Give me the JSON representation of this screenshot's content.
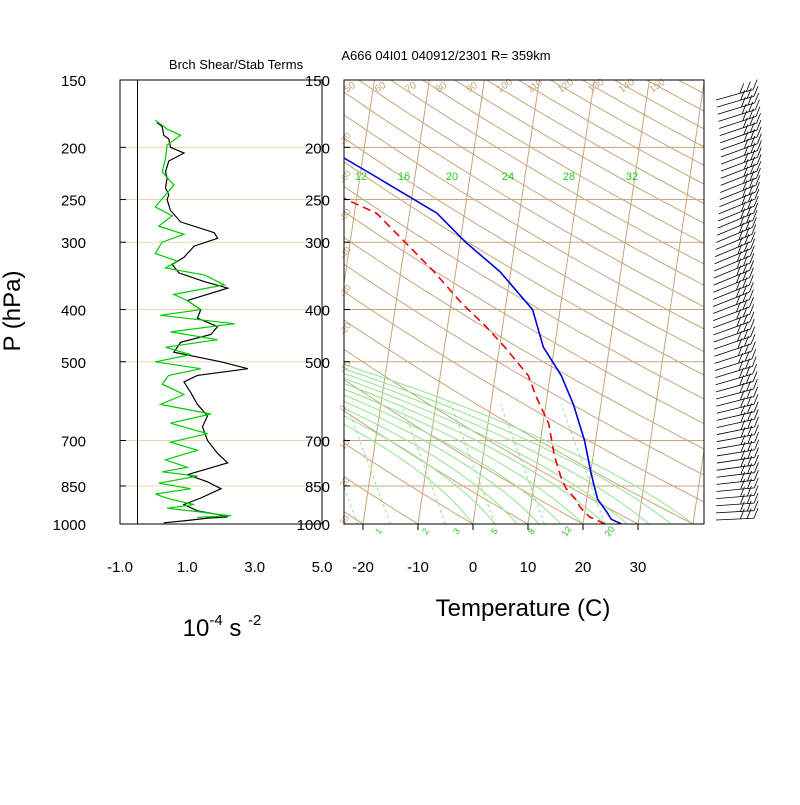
{
  "chart_data": [
    {
      "type": "line",
      "title": "Brch Shear/Stab Terms",
      "xlabel": "10-4 s -2",
      "xlabel_main": "10",
      "xlabel_exp1": "-4",
      "xlabel_mid": " s ",
      "xlabel_exp2": "-2",
      "ylabel": "P (hPa)",
      "xlim": [
        -1.0,
        5.0
      ],
      "x_ticks": [
        "-1.0",
        "1.0",
        "3.0",
        "5.0"
      ],
      "x_tick_values": [
        -1,
        1,
        3,
        5
      ],
      "y_scale": "log",
      "ylim": [
        1000,
        150
      ],
      "y_ticks": [
        150,
        200,
        250,
        300,
        400,
        500,
        700,
        850,
        1000
      ],
      "reference_line_x": 0,
      "grid": "horizontal pressure lines",
      "series": [
        {
          "color": "#000000",
          "points": [
            [
              0.1,
              180
            ],
            [
              0.25,
              183
            ],
            [
              0.3,
              190
            ],
            [
              0.45,
              193
            ],
            [
              0.5,
              200
            ],
            [
              0.9,
              205
            ],
            [
              0.45,
              212
            ],
            [
              0.35,
              222
            ],
            [
              0.4,
              228
            ],
            [
              0.35,
              238
            ],
            [
              0.45,
              245
            ],
            [
              0.4,
              250
            ],
            [
              0.5,
              262
            ],
            [
              0.8,
              275
            ],
            [
              1.8,
              288
            ],
            [
              1.9,
              295
            ],
            [
              1.2,
              305
            ],
            [
              0.9,
              320
            ],
            [
              0.55,
              330
            ],
            [
              0.75,
              342
            ],
            [
              1.5,
              355
            ],
            [
              2.2,
              365
            ],
            [
              1.0,
              385
            ],
            [
              1.4,
              400
            ],
            [
              1.3,
              415
            ],
            [
              1.9,
              430
            ],
            [
              1.7,
              445
            ],
            [
              0.8,
              460
            ],
            [
              0.6,
              480
            ],
            [
              2.0,
              500
            ],
            [
              2.8,
              515
            ],
            [
              1.3,
              530
            ],
            [
              0.9,
              545
            ],
            [
              1.1,
              570
            ],
            [
              1.3,
              600
            ],
            [
              1.6,
              630
            ],
            [
              1.45,
              660
            ],
            [
              1.6,
              700
            ],
            [
              1.9,
              740
            ],
            [
              2.2,
              770
            ],
            [
              1.6,
              790
            ],
            [
              1.0,
              810
            ],
            [
              1.6,
              835
            ],
            [
              2.0,
              860
            ],
            [
              1.4,
              895
            ],
            [
              0.9,
              920
            ],
            [
              1.3,
              945
            ],
            [
              1.9,
              960
            ],
            [
              2.2,
              970
            ],
            [
              1.6,
              975
            ],
            [
              1.0,
              985
            ],
            [
              0.3,
              995
            ]
          ]
        },
        {
          "color": "#00cc00",
          "points": [
            [
              0.05,
              178
            ],
            [
              0.4,
              185
            ],
            [
              0.8,
              190
            ],
            [
              0.4,
              198
            ],
            [
              0.35,
              210
            ],
            [
              0.25,
              222
            ],
            [
              0.6,
              235
            ],
            [
              0.35,
              245
            ],
            [
              0.05,
              258
            ],
            [
              0.55,
              268
            ],
            [
              0.15,
              280
            ],
            [
              0.9,
              290
            ],
            [
              0.25,
              300
            ],
            [
              0.05,
              315
            ],
            [
              0.7,
              325
            ],
            [
              0.35,
              335
            ],
            [
              1.5,
              345
            ],
            [
              2.1,
              360
            ],
            [
              0.6,
              375
            ],
            [
              1.0,
              385
            ],
            [
              1.4,
              400
            ],
            [
              0.2,
              410
            ],
            [
              2.4,
              425
            ],
            [
              0.5,
              440
            ],
            [
              1.9,
              455
            ],
            [
              0.35,
              470
            ],
            [
              1.1,
              485
            ],
            [
              0.05,
              500
            ],
            [
              1.4,
              515
            ],
            [
              0.45,
              530
            ],
            [
              0.25,
              550
            ],
            [
              0.9,
              575
            ],
            [
              0.2,
              600
            ],
            [
              1.7,
              625
            ],
            [
              0.5,
              650
            ],
            [
              1.6,
              680
            ],
            [
              0.5,
              705
            ],
            [
              1.3,
              730
            ],
            [
              0.35,
              760
            ],
            [
              1.0,
              785
            ],
            [
              0.25,
              800
            ],
            [
              1.3,
              815
            ],
            [
              0.15,
              840
            ],
            [
              1.1,
              860
            ],
            [
              0.05,
              880
            ],
            [
              0.5,
              900
            ],
            [
              1.2,
              920
            ],
            [
              0.4,
              935
            ],
            [
              1.4,
              950
            ],
            [
              1.9,
              960
            ],
            [
              2.3,
              965
            ],
            [
              1.3,
              972
            ]
          ]
        }
      ]
    },
    {
      "type": "line",
      "subtype": "skew-T log-P sounding",
      "title": "A666 04I01 040912/2301 R= 359km",
      "xlabel": "Temperature (C)",
      "xlim": [
        -25,
        40
      ],
      "x_ticks": [
        "-20",
        "-10",
        "0",
        "10",
        "20",
        "30"
      ],
      "x_tick_values": [
        -20,
        -10,
        0,
        10,
        20,
        30
      ],
      "y_scale": "log",
      "ylim": [
        1000,
        150
      ],
      "y_ticks": [
        150,
        200,
        250,
        300,
        400,
        500,
        700,
        850,
        1000
      ],
      "isotherm_spacing": 10,
      "dry_adiabat_labels": [
        "50",
        "60",
        "70",
        "80",
        "90",
        "100",
        "110",
        "120",
        "130",
        "140",
        "150"
      ],
      "saturation_adiabat_labels": [
        "12",
        "16",
        "20",
        "24",
        "28",
        "32"
      ],
      "mixing_ratio_labels": [
        "1",
        "2",
        "3",
        "5",
        "8",
        "12",
        "20"
      ],
      "isotherm_edge_labels": [
        "-70",
        "-60",
        "-50",
        "-40",
        "-30",
        "-20",
        "-10",
        "0",
        "10",
        "20",
        "30"
      ],
      "series": [
        {
          "color": "#0000dd",
          "style": "solid",
          "points": [
            [
              27,
              1000
            ],
            [
              25,
              980
            ],
            [
              24,
              950
            ],
            [
              22,
              900
            ],
            [
              21,
              850
            ],
            [
              20,
              800
            ],
            [
              18,
              700
            ],
            [
              15,
              600
            ],
            [
              12,
              530
            ],
            [
              8,
              470
            ],
            [
              5,
              400
            ],
            [
              -2,
              340
            ],
            [
              -9,
              300
            ],
            [
              -15,
              265
            ],
            [
              -26,
              230
            ],
            [
              -37,
              200
            ],
            [
              -52,
              175
            ]
          ]
        },
        {
          "color": "#ee0000",
          "style": "dashed",
          "points": [
            [
              24,
              1000
            ],
            [
              21,
              970
            ],
            [
              19,
              930
            ],
            [
              18,
              900
            ],
            [
              16,
              860
            ],
            [
              15,
              830
            ],
            [
              13,
              750
            ],
            [
              11,
              650
            ],
            [
              8,
              580
            ],
            [
              6,
              530
            ],
            [
              1,
              470
            ],
            [
              -3,
              430
            ],
            [
              -8,
              390
            ],
            [
              -14,
              340
            ],
            [
              -20,
              300
            ],
            [
              -26,
              265
            ],
            [
              -38,
              235
            ],
            [
              -49,
              215
            ],
            [
              -62,
              200
            ]
          ]
        }
      ]
    }
  ]
}
